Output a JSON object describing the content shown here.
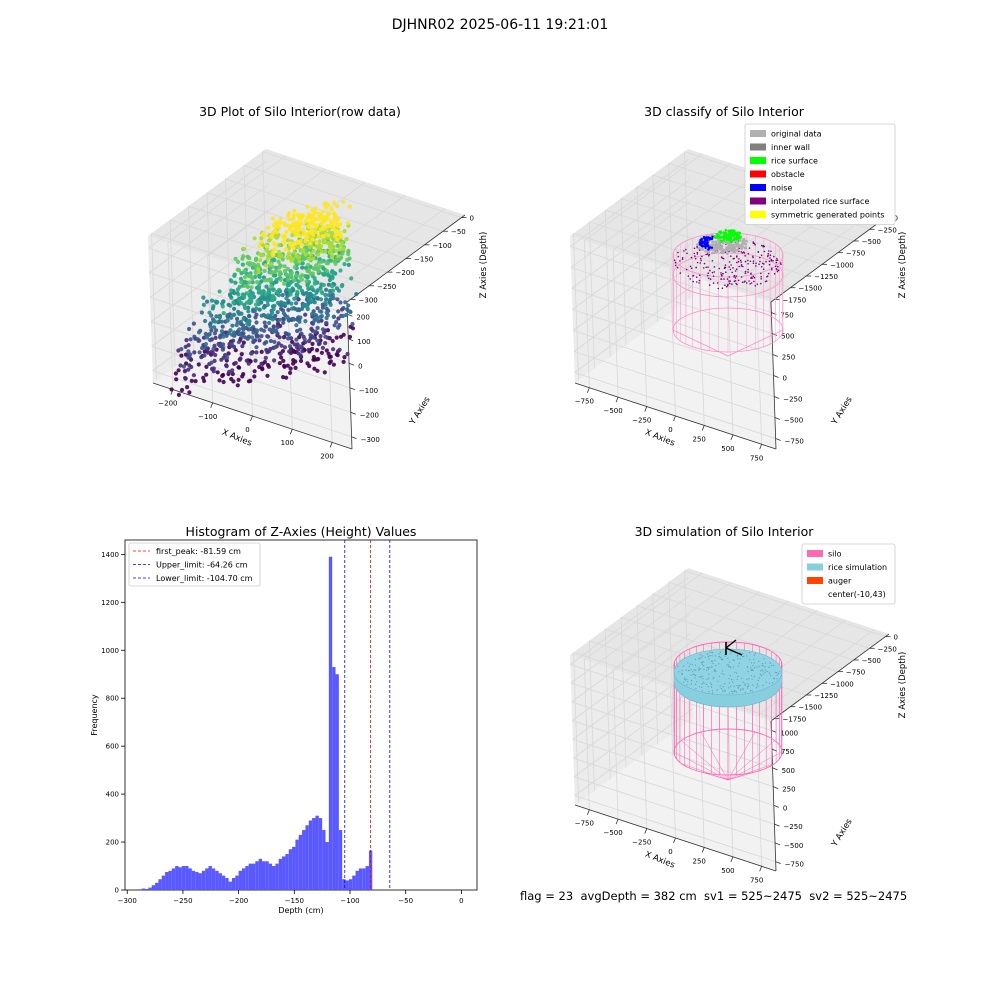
{
  "suptitle": "DJHNR02 2025-06-11 19:21:01",
  "footer": "flag = 23  avgDepth = 382 cm  sv1 = 525~2475  sv2 = 525~2475",
  "colors": {
    "histogram_bar": "#5050ff",
    "first_peak_line": "#ff0000",
    "limit_line": "#0000ff",
    "original_data": "#b0b0b0",
    "inner_wall": "#808080",
    "rice_surface": "#00ff00",
    "obstacle": "#ff0000",
    "noise": "#0000ff",
    "interpolated_rice_surface": "#800080",
    "symmetric_generated_points": "#ffff00",
    "silo": "#ff69b4",
    "rice_simulation": "#87cedf",
    "auger": "#ff4500"
  },
  "chart_data": [
    {
      "type": "scatter",
      "subtype": "3d",
      "title": "3D Plot of Silo Interior(row data)",
      "xlabel": "X Axies",
      "ylabel": "Y Axies",
      "zlabel": "Z Axies (Depth)",
      "xticks": [
        "−200",
        "−100",
        "0",
        "100",
        "200"
      ],
      "yticks": [
        "−300",
        "−200",
        "−100",
        "0",
        "100",
        "200"
      ],
      "zticks": [
        "0",
        "−50",
        "−100",
        "−150",
        "−200",
        "−250",
        "−300"
      ],
      "xlim": [
        -250,
        250
      ],
      "ylim": [
        -300,
        230
      ],
      "zlim": [
        -300,
        0
      ],
      "colormap": "viridis",
      "grid": true
    },
    {
      "type": "scatter",
      "subtype": "3d",
      "title": "3D classify of Silo Interior",
      "xlabel": "X Axies",
      "ylabel": "Y Axies",
      "zlabel": "Z Axies (Depth)",
      "xticks": [
        "−750",
        "−500",
        "−250",
        "0",
        "250",
        "500",
        "750"
      ],
      "yticks": [
        "−750",
        "−500",
        "−250",
        "0",
        "250",
        "500",
        "750"
      ],
      "zticks": [
        "0",
        "−250",
        "−500",
        "−750",
        "−1000",
        "−1250",
        "−1500",
        "−1750"
      ],
      "legend_position": "top-right",
      "legend": [
        "original data",
        "inner wall",
        "rice surface",
        "obstacle",
        "noise",
        "interpolated rice surface",
        "symmetric generated points"
      ],
      "grid": true
    },
    {
      "type": "bar",
      "title": "Histogram of Z-Axies (Height) Values",
      "xlabel": "Depth (cm)",
      "ylabel": "Frequency",
      "xlim": [
        -302,
        14
      ],
      "ylim": [
        0,
        1460
      ],
      "xticks": [
        -300,
        -250,
        -200,
        -150,
        -100,
        -50,
        0
      ],
      "xtick_labels": [
        "−300",
        "−250",
        "−200",
        "−150",
        "−100",
        "−50",
        "0"
      ],
      "yticks": [
        0,
        200,
        400,
        600,
        800,
        1000,
        1200,
        1400
      ],
      "bin_start": -290,
      "bin_width": 5,
      "values": [
        3,
        6,
        4,
        10,
        20,
        30,
        45,
        60,
        75,
        80,
        90,
        100,
        95,
        100,
        100,
        90,
        80,
        75,
        70,
        80,
        90,
        100,
        90,
        80,
        70,
        60,
        50,
        35,
        50,
        60,
        80,
        90,
        100,
        110,
        110,
        120,
        130,
        120,
        120,
        110,
        100,
        110,
        130,
        140,
        150,
        170,
        180,
        210,
        230,
        250,
        270,
        290,
        300,
        310,
        300,
        250,
        200,
        1390,
        930,
        900,
        250,
        45,
        40,
        45,
        60,
        80,
        90,
        90,
        100,
        165
      ],
      "vlines": [
        {
          "label": "first_peak: -81.59 cm",
          "x": -81.59,
          "color": "#ff0000"
        },
        {
          "label": "Upper_limit: -64.26 cm",
          "x": -64.26,
          "color": "#0000ff"
        },
        {
          "label": "Lower_limit: -104.70 cm",
          "x": -104.7,
          "color": "#0000ff"
        }
      ],
      "legend_position": "top-left"
    },
    {
      "type": "scatter",
      "subtype": "3d",
      "title": "3D simulation of Silo Interior",
      "xlabel": "X Axies",
      "ylabel": "Y Axies",
      "zlabel": "Z Axies (Depth)",
      "xticks": [
        "−750",
        "−500",
        "−250",
        "0",
        "250",
        "500",
        "750"
      ],
      "yticks": [
        "−750",
        "−500",
        "−250",
        "0",
        "250",
        "500",
        "750",
        "1000"
      ],
      "zticks": [
        "0",
        "−250",
        "−500",
        "−750",
        "−1000",
        "−1250",
        "−1500",
        "−1750"
      ],
      "legend_position": "top-right",
      "legend": [
        "silo",
        "rice simulation",
        "auger",
        "center(-10,43)"
      ],
      "grid": true
    }
  ]
}
